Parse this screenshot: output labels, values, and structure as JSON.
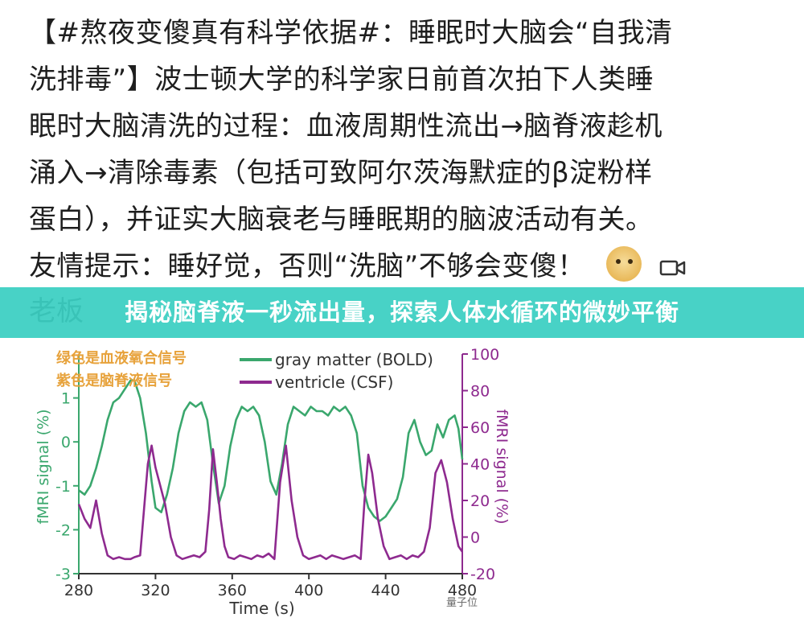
{
  "post": {
    "lines": [
      "【#熬夜变傻真有科学依据#：睡眠时大脑会“自我清",
      "洗排毒”】波士顿大学的科学家日前首次拍下人类睡",
      "眠时大脑清洗的过程：血液周期性流出→脑脊液趁机",
      "涌入→清除毒素（包括可致阿尔茨海默症的β淀粉样",
      "蛋白），并证实大脑衰老与睡眠期的脑波活动有关。",
      "友情提示：睡好觉，否则“洗脑”不够会变傻！"
    ],
    "partial_line": "老板"
  },
  "banner": {
    "title": "揭秘脑脊液一秒流出量，探索人体水循环的微妙平衡"
  },
  "chart_data": {
    "type": "line",
    "annotations": [
      "绿色是血液氧合信号",
      "紫色是脑脊液信号"
    ],
    "xlabel": "Time (s)",
    "ylabel": "fMRI signal (%)",
    "y2label": "fMRI signal (%)",
    "xlim": [
      280,
      480
    ],
    "ylim": [
      -3,
      2
    ],
    "y2lim": [
      -20,
      100
    ],
    "xticks": [
      280,
      320,
      360,
      400,
      440,
      480
    ],
    "yticks": [
      -3,
      -2,
      -1,
      0,
      1
    ],
    "y2ticks": [
      -20,
      0,
      20,
      40,
      60,
      80,
      100
    ],
    "series": [
      {
        "name": "gray matter (BOLD)",
        "axis": "left",
        "color": "#3aa76d",
        "x": [
          280,
          283,
          286,
          289,
          292,
          295,
          298,
          301,
          304,
          307,
          309,
          312,
          315,
          318,
          320,
          323,
          326,
          329,
          332,
          335,
          338,
          341,
          344,
          347,
          350,
          353,
          356,
          359,
          362,
          365,
          368,
          371,
          374,
          377,
          380,
          383,
          386,
          389,
          392,
          395,
          398,
          401,
          404,
          407,
          410,
          413,
          416,
          419,
          422,
          425,
          428,
          431,
          434,
          437,
          440,
          443,
          446,
          449,
          452,
          455,
          458,
          461,
          464,
          467,
          470,
          473,
          476,
          478,
          480
        ],
        "y": [
          -1.1,
          -1.2,
          -1.0,
          -0.6,
          -0.1,
          0.5,
          0.9,
          1.0,
          1.2,
          1.4,
          1.4,
          1.0,
          0.2,
          -0.9,
          -1.5,
          -1.6,
          -1.2,
          -0.6,
          0.2,
          0.7,
          0.9,
          0.8,
          0.9,
          0.5,
          -0.5,
          -1.4,
          -1.0,
          -0.1,
          0.5,
          0.8,
          0.7,
          0.8,
          0.6,
          0.0,
          -0.9,
          -1.2,
          -0.5,
          0.4,
          0.8,
          0.7,
          0.6,
          0.8,
          0.7,
          0.7,
          0.6,
          0.8,
          0.7,
          0.8,
          0.6,
          0.2,
          -1.0,
          -1.5,
          -1.7,
          -1.8,
          -1.7,
          -1.5,
          -1.3,
          -0.8,
          0.2,
          0.5,
          0.0,
          -0.3,
          -0.2,
          0.4,
          0.1,
          0.5,
          0.6,
          0.3,
          -0.4
        ]
      },
      {
        "name": "ventricle (CSF)",
        "axis": "right",
        "color": "#8e2a8f",
        "x": [
          280,
          283,
          286,
          289,
          292,
          295,
          298,
          301,
          304,
          307,
          309,
          312,
          314,
          316,
          318,
          320,
          322,
          325,
          328,
          331,
          334,
          337,
          340,
          343,
          346,
          348,
          350,
          352,
          354,
          356,
          358,
          361,
          364,
          367,
          370,
          373,
          376,
          379,
          382,
          385,
          388,
          391,
          394,
          397,
          400,
          403,
          406,
          409,
          412,
          415,
          418,
          421,
          424,
          427,
          429,
          431,
          433,
          436,
          439,
          442,
          445,
          448,
          451,
          454,
          457,
          460,
          463,
          466,
          469,
          472,
          475,
          478,
          480
        ],
        "y": [
          18,
          10,
          5,
          20,
          2,
          -10,
          -12,
          -11,
          -12,
          -12,
          -11,
          -10,
          15,
          40,
          50,
          38,
          30,
          18,
          0,
          -10,
          -12,
          -11,
          -10,
          -11,
          -8,
          15,
          48,
          30,
          10,
          -5,
          -11,
          -12,
          -10,
          -11,
          -12,
          -10,
          -11,
          -9,
          -12,
          30,
          50,
          20,
          0,
          -10,
          -12,
          -11,
          -10,
          -12,
          -10,
          -11,
          -12,
          -11,
          -10,
          -12,
          20,
          45,
          35,
          10,
          -5,
          -12,
          -11,
          -10,
          -12,
          -10,
          -11,
          -8,
          5,
          35,
          42,
          30,
          10,
          -5,
          -8
        ]
      }
    ]
  },
  "watermark": {
    "text": "量子位"
  }
}
